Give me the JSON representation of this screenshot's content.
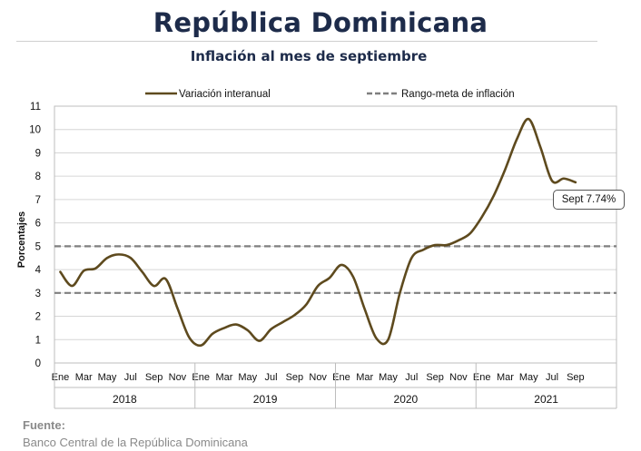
{
  "header": {
    "title": "República Dominicana",
    "subtitle": "Inflación al mes de septiembre"
  },
  "footer": {
    "source_label": "Fuente:",
    "source_text": "Banco Central de la República Dominicana"
  },
  "callout_text": "Sept 7.74%",
  "chart_data": {
    "type": "line",
    "title": "Inflación al mes de septiembre",
    "xlabel": "",
    "ylabel": "Porcentajes",
    "ylim": [
      0,
      11
    ],
    "yticks": [
      0,
      1,
      2,
      3,
      4,
      5,
      6,
      7,
      8,
      9,
      10,
      11
    ],
    "grid": true,
    "legend_position": "top",
    "month_ticks": [
      "Ene",
      "Mar",
      "May",
      "Jul",
      "Sep",
      "Nov",
      "Ene",
      "Mar",
      "May",
      "Jul",
      "Sep",
      "Nov",
      "Ene",
      "Mar",
      "May",
      "Jul",
      "Sep",
      "Nov",
      "Ene",
      "Mar",
      "May",
      "Jul",
      "Sep"
    ],
    "years": [
      "2018",
      "2019",
      "2020",
      "2021"
    ],
    "series": [
      {
        "name": "Variación interanual",
        "color": "#5e4a1e",
        "style": "solid",
        "x": [
          "2018-01",
          "2018-02",
          "2018-03",
          "2018-04",
          "2018-05",
          "2018-06",
          "2018-07",
          "2018-08",
          "2018-09",
          "2018-10",
          "2018-11",
          "2018-12",
          "2019-01",
          "2019-02",
          "2019-03",
          "2019-04",
          "2019-05",
          "2019-06",
          "2019-07",
          "2019-08",
          "2019-09",
          "2019-10",
          "2019-11",
          "2019-12",
          "2020-01",
          "2020-02",
          "2020-03",
          "2020-04",
          "2020-05",
          "2020-06",
          "2020-07",
          "2020-08",
          "2020-09",
          "2020-10",
          "2020-11",
          "2020-12",
          "2021-01",
          "2021-02",
          "2021-03",
          "2021-04",
          "2021-05",
          "2021-06",
          "2021-07",
          "2021-08",
          "2021-09"
        ],
        "values": [
          3.9,
          3.3,
          3.95,
          4.05,
          4.5,
          4.65,
          4.5,
          3.9,
          3.3,
          3.6,
          2.35,
          1.1,
          0.75,
          1.25,
          1.5,
          1.65,
          1.4,
          0.95,
          1.45,
          1.75,
          2.05,
          2.5,
          3.3,
          3.65,
          4.2,
          3.7,
          2.3,
          1.05,
          1.0,
          3.0,
          4.5,
          4.85,
          5.05,
          5.05,
          5.25,
          5.55,
          6.25,
          7.15,
          8.3,
          9.6,
          10.45,
          9.25,
          7.8,
          7.9,
          7.74
        ]
      },
      {
        "name": "Rango-meta de inflación",
        "color": "#7f7f7f",
        "style": "dashed",
        "values_upper": 5,
        "values_lower": 3
      }
    ],
    "annotations": [
      "Sept 7.74%"
    ]
  }
}
